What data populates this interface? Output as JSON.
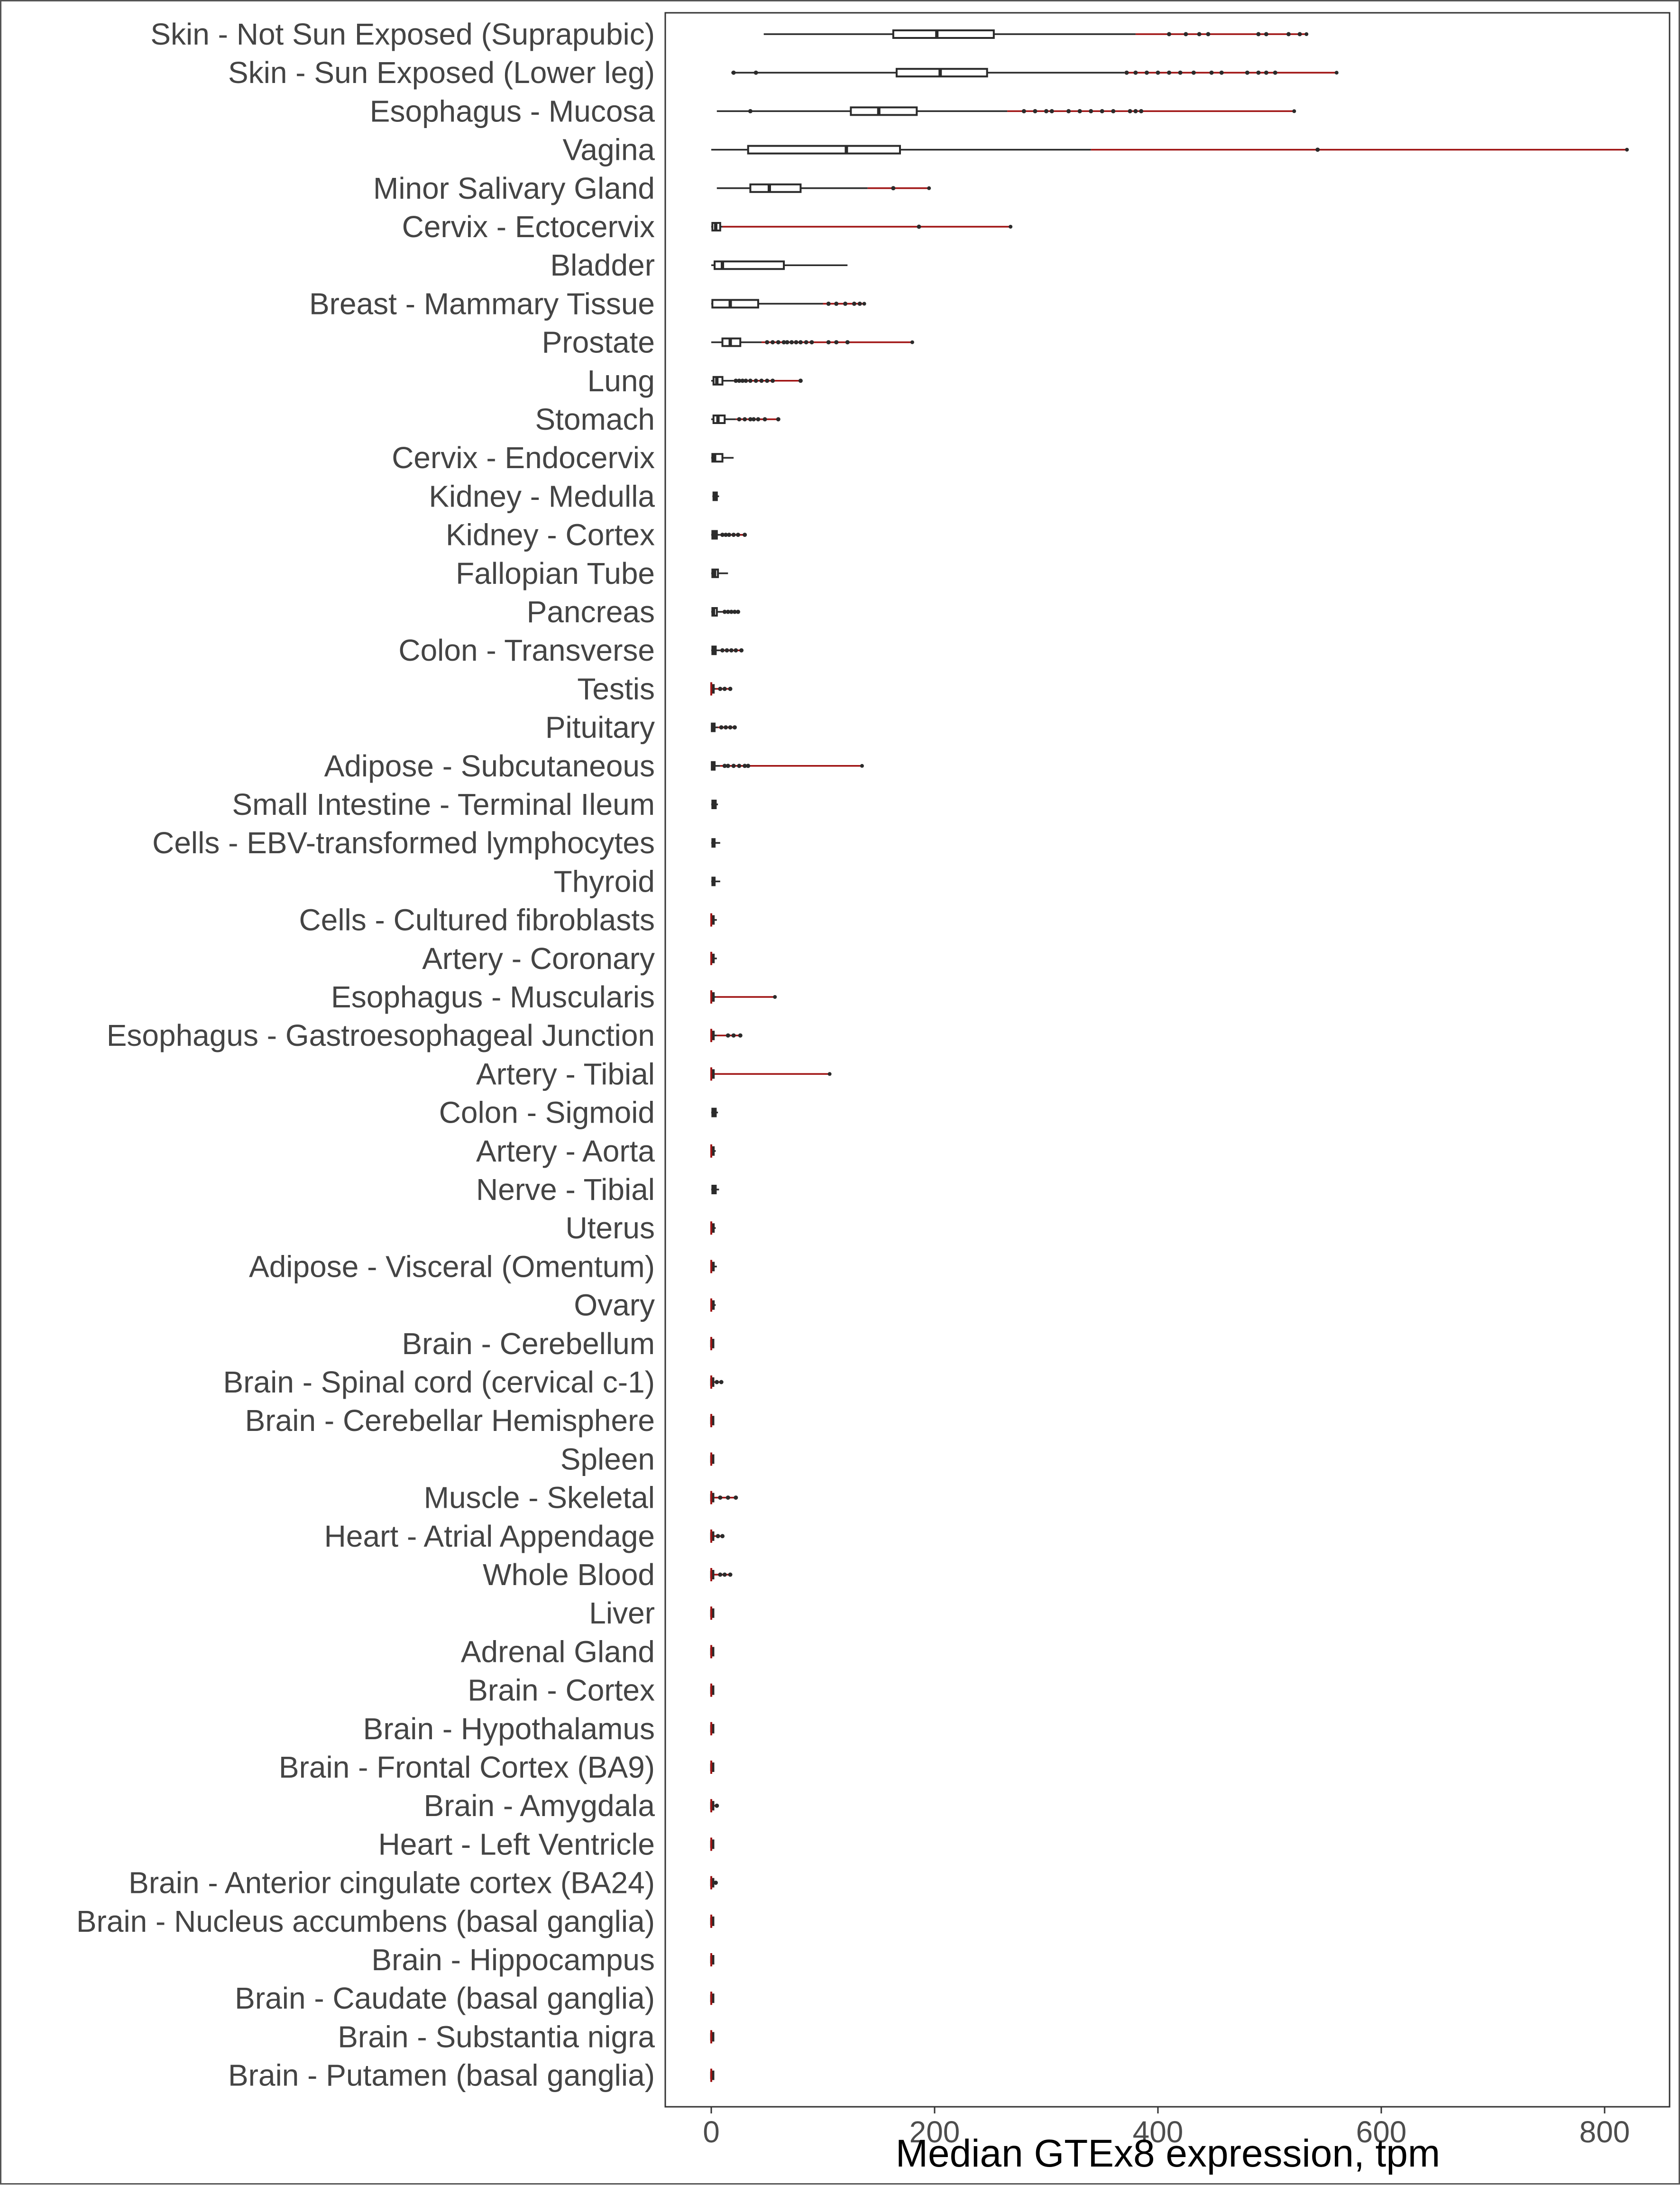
{
  "chart_data": {
    "type": "boxplot",
    "orientation": "horizontal",
    "xlabel": "Median GTEx8 expression, tpm",
    "ylabel": "",
    "xlim": [
      -40,
      860
    ],
    "xticks": [
      0,
      200,
      400,
      600,
      800
    ],
    "grid": false,
    "legend": "none",
    "colors": {
      "box": "#2b2b2b",
      "whisker": "#2b2b2b",
      "tail": "#a01414",
      "outlier": "#2b2b2b",
      "text": "#444444"
    },
    "categories": [
      "Skin - Not Sun Exposed (Suprapubic)",
      "Skin - Sun Exposed (Lower leg)",
      "Esophagus - Mucosa",
      "Vagina",
      "Minor Salivary Gland",
      "Cervix - Ectocervix",
      "Bladder",
      "Breast - Mammary Tissue",
      "Prostate",
      "Lung",
      "Stomach",
      "Cervix - Endocervix",
      "Kidney - Medulla",
      "Kidney - Cortex",
      "Fallopian Tube",
      "Pancreas",
      "Colon - Transverse",
      "Testis",
      "Pituitary",
      "Adipose - Subcutaneous",
      "Small Intestine - Terminal Ileum",
      "Cells - EBV-transformed lymphocytes",
      "Thyroid",
      "Cells - Cultured fibroblasts",
      "Artery - Coronary",
      "Esophagus - Muscularis",
      "Esophagus - Gastroesophageal Junction",
      "Artery - Tibial",
      "Colon - Sigmoid",
      "Artery - Aorta",
      "Nerve - Tibial",
      "Uterus",
      "Adipose - Visceral (Omentum)",
      "Ovary",
      "Brain - Cerebellum",
      "Brain - Spinal cord (cervical c-1)",
      "Brain - Cerebellar Hemisphere",
      "Spleen",
      "Muscle - Skeletal",
      "Heart - Atrial Appendage",
      "Whole Blood",
      "Liver",
      "Adrenal Gland",
      "Brain - Cortex",
      "Brain - Hypothalamus",
      "Brain - Frontal Cortex (BA9)",
      "Brain - Amygdala",
      "Heart - Left Ventricle",
      "Brain - Anterior cingulate cortex (BA24)",
      "Brain - Nucleus accumbens (basal ganglia)",
      "Brain - Hippocampus",
      "Brain - Caudate (basal ganglia)",
      "Brain - Substantia nigra",
      "Brain - Putamen (basal ganglia)"
    ],
    "boxes": [
      {
        "min": 47,
        "q1": 163,
        "median": 202,
        "q3": 253,
        "whisker_max": 380,
        "max": 533,
        "outliers": [
          410,
          425,
          437,
          445,
          490,
          497,
          517,
          527
        ]
      },
      {
        "min": 18,
        "q1": 166,
        "median": 205,
        "q3": 247,
        "whisker_max": 370,
        "max": 560,
        "outliers": [
          20,
          40,
          372,
          380,
          390,
          400,
          410,
          420,
          432,
          448,
          457,
          480,
          490,
          497,
          505
        ]
      },
      {
        "min": 5,
        "q1": 125,
        "median": 150,
        "q3": 184,
        "whisker_max": 265,
        "max": 522,
        "outliers": [
          35,
          280,
          290,
          300,
          305,
          320,
          330,
          340,
          350,
          360,
          375,
          380,
          385
        ]
      },
      {
        "min": 0,
        "q1": 33,
        "median": 121,
        "q3": 169,
        "whisker_max": 340,
        "max": 820,
        "outliers": [
          543
        ]
      },
      {
        "min": 5,
        "q1": 35,
        "median": 52,
        "q3": 80,
        "whisker_max": 140,
        "max": 195,
        "outliers": [
          163
        ]
      },
      {
        "min": 0,
        "q1": 1,
        "median": 4,
        "q3": 8,
        "whisker_max": 10,
        "max": 268,
        "outliers": [
          186
        ]
      },
      {
        "min": 0,
        "q1": 3,
        "median": 10,
        "q3": 65,
        "whisker_max": 122,
        "max": 122,
        "outliers": []
      },
      {
        "min": 0,
        "q1": 1,
        "median": 17,
        "q3": 42,
        "whisker_max": 100,
        "max": 137,
        "outliers": [
          105,
          112,
          120,
          128,
          133
        ]
      },
      {
        "min": 0,
        "q1": 10,
        "median": 17,
        "q3": 26,
        "whisker_max": 45,
        "max": 180,
        "outliers": [
          50,
          55,
          60,
          65,
          68,
          72,
          76,
          80,
          85,
          90,
          105,
          112,
          122
        ]
      },
      {
        "min": 0,
        "q1": 2,
        "median": 5,
        "q3": 10,
        "whisker_max": 20,
        "max": 80,
        "outliers": [
          22,
          25,
          28,
          31,
          35,
          40,
          45,
          50,
          55,
          80
        ]
      },
      {
        "min": 0,
        "q1": 2,
        "median": 6,
        "q3": 12,
        "whisker_max": 22,
        "max": 60,
        "outliers": [
          25,
          30,
          35,
          38,
          42,
          48,
          60
        ]
      },
      {
        "min": 0,
        "q1": 1,
        "median": 3,
        "q3": 10,
        "whisker_max": 20,
        "max": 20,
        "outliers": []
      },
      {
        "min": 1,
        "q1": 2,
        "median": 3,
        "q3": 5,
        "whisker_max": 7,
        "max": 7,
        "outliers": []
      },
      {
        "min": 0,
        "q1": 1,
        "median": 3,
        "q3": 5,
        "whisker_max": 8,
        "max": 30,
        "outliers": [
          10,
          13,
          16,
          20,
          24,
          30
        ]
      },
      {
        "min": 0,
        "q1": 1,
        "median": 3,
        "q3": 6,
        "whisker_max": 15,
        "max": 15,
        "outliers": []
      },
      {
        "min": 0,
        "q1": 1,
        "median": 2,
        "q3": 5,
        "whisker_max": 10,
        "max": 24,
        "outliers": [
          12,
          15,
          18,
          21,
          24
        ]
      },
      {
        "min": 0,
        "q1": 1,
        "median": 2,
        "q3": 4,
        "whisker_max": 8,
        "max": 27,
        "outliers": [
          10,
          14,
          18,
          22,
          27
        ]
      },
      {
        "min": 0,
        "q1": 0.5,
        "median": 1,
        "q3": 2,
        "whisker_max": 4,
        "max": 17,
        "outliers": [
          8,
          12,
          17
        ]
      },
      {
        "min": 0,
        "q1": 0.5,
        "median": 1.5,
        "q3": 3,
        "whisker_max": 6,
        "max": 21,
        "outliers": [
          9,
          13,
          17,
          21
        ]
      },
      {
        "min": 0,
        "q1": 0.5,
        "median": 1.5,
        "q3": 3,
        "whisker_max": 8,
        "max": 135,
        "outliers": [
          12,
          15,
          20,
          25,
          30,
          33
        ]
      },
      {
        "min": 0,
        "q1": 1,
        "median": 2,
        "q3": 4,
        "whisker_max": 6,
        "max": 6,
        "outliers": []
      },
      {
        "min": 0,
        "q1": 1,
        "median": 2,
        "q3": 3,
        "whisker_max": 8,
        "max": 8,
        "outliers": []
      },
      {
        "min": 0,
        "q1": 1,
        "median": 2,
        "q3": 3,
        "whisker_max": 8,
        "max": 8,
        "outliers": []
      },
      {
        "min": 0,
        "q1": 0.5,
        "median": 1,
        "q3": 2,
        "whisker_max": 5,
        "max": 5,
        "outliers": []
      },
      {
        "min": 0,
        "q1": 0.5,
        "median": 1,
        "q3": 2,
        "whisker_max": 5,
        "max": 5,
        "outliers": []
      },
      {
        "min": 0,
        "q1": 0.5,
        "median": 1,
        "q3": 2,
        "whisker_max": 4,
        "max": 57,
        "outliers": []
      },
      {
        "min": 0,
        "q1": 0.5,
        "median": 1,
        "q3": 2,
        "whisker_max": 5,
        "max": 26,
        "outliers": [
          15,
          20,
          26
        ]
      },
      {
        "min": 0,
        "q1": 0.5,
        "median": 1,
        "q3": 2,
        "whisker_max": 3,
        "max": 106,
        "outliers": []
      },
      {
        "min": 0,
        "q1": 1,
        "median": 2,
        "q3": 4,
        "whisker_max": 6,
        "max": 6,
        "outliers": []
      },
      {
        "min": 0,
        "q1": 0.5,
        "median": 1,
        "q3": 2,
        "whisker_max": 4,
        "max": 4,
        "outliers": []
      },
      {
        "min": 0,
        "q1": 1,
        "median": 2,
        "q3": 4,
        "whisker_max": 7,
        "max": 7,
        "outliers": []
      },
      {
        "min": 0,
        "q1": 0.5,
        "median": 1,
        "q3": 2,
        "whisker_max": 4,
        "max": 4,
        "outliers": []
      },
      {
        "min": 0,
        "q1": 0.5,
        "median": 1,
        "q3": 2,
        "whisker_max": 5,
        "max": 5,
        "outliers": []
      },
      {
        "min": 0,
        "q1": 0.5,
        "median": 1,
        "q3": 2,
        "whisker_max": 4,
        "max": 4,
        "outliers": []
      },
      {
        "min": 0,
        "q1": 0.2,
        "median": 0.5,
        "q3": 1,
        "whisker_max": 2,
        "max": 2,
        "outliers": []
      },
      {
        "min": 0,
        "q1": 0.2,
        "median": 0.5,
        "q3": 1,
        "whisker_max": 2,
        "max": 9,
        "outliers": [
          5,
          9
        ]
      },
      {
        "min": 0,
        "q1": 0.2,
        "median": 0.5,
        "q3": 1,
        "whisker_max": 2,
        "max": 2,
        "outliers": []
      },
      {
        "min": 0,
        "q1": 0.2,
        "median": 0.5,
        "q3": 1,
        "whisker_max": 2,
        "max": 2,
        "outliers": []
      },
      {
        "min": 0,
        "q1": 0.2,
        "median": 0.5,
        "q3": 1,
        "whisker_max": 3,
        "max": 22,
        "outliers": [
          8,
          15,
          22
        ]
      },
      {
        "min": 0,
        "q1": 0.2,
        "median": 0.5,
        "q3": 1,
        "whisker_max": 2,
        "max": 10,
        "outliers": [
          6,
          10
        ]
      },
      {
        "min": 0,
        "q1": 0.2,
        "median": 0.5,
        "q3": 1,
        "whisker_max": 2,
        "max": 17,
        "outliers": [
          8,
          12,
          17
        ]
      },
      {
        "min": 0,
        "q1": 0.2,
        "median": 0.5,
        "q3": 1,
        "whisker_max": 2,
        "max": 2,
        "outliers": []
      },
      {
        "min": 0,
        "q1": 0.2,
        "median": 0.5,
        "q3": 1,
        "whisker_max": 2,
        "max": 2,
        "outliers": []
      },
      {
        "min": 0,
        "q1": 0.2,
        "median": 0.5,
        "q3": 1,
        "whisker_max": 2,
        "max": 2,
        "outliers": []
      },
      {
        "min": 0,
        "q1": 0.2,
        "median": 0.5,
        "q3": 1,
        "whisker_max": 2,
        "max": 2,
        "outliers": []
      },
      {
        "min": 0,
        "q1": 0.2,
        "median": 0.5,
        "q3": 1,
        "whisker_max": 2,
        "max": 2,
        "outliers": []
      },
      {
        "min": 0,
        "q1": 0.2,
        "median": 0.5,
        "q3": 1,
        "whisker_max": 2,
        "max": 5,
        "outliers": [
          5
        ]
      },
      {
        "min": 0,
        "q1": 0.2,
        "median": 0.5,
        "q3": 1,
        "whisker_max": 2,
        "max": 2,
        "outliers": []
      },
      {
        "min": 0,
        "q1": 0.2,
        "median": 0.5,
        "q3": 1,
        "whisker_max": 2,
        "max": 4,
        "outliers": [
          4
        ]
      },
      {
        "min": 0,
        "q1": 0.2,
        "median": 0.5,
        "q3": 1,
        "whisker_max": 2,
        "max": 2,
        "outliers": []
      },
      {
        "min": 0,
        "q1": 0.2,
        "median": 0.5,
        "q3": 1,
        "whisker_max": 2,
        "max": 2,
        "outliers": []
      },
      {
        "min": 0,
        "q1": 0.2,
        "median": 0.5,
        "q3": 1,
        "whisker_max": 2,
        "max": 2,
        "outliers": []
      },
      {
        "min": 0,
        "q1": 0.2,
        "median": 0.5,
        "q3": 1,
        "whisker_max": 2,
        "max": 2,
        "outliers": []
      },
      {
        "min": 0,
        "q1": 0.2,
        "median": 0.5,
        "q3": 1,
        "whisker_max": 2,
        "max": 2,
        "outliers": []
      }
    ]
  }
}
